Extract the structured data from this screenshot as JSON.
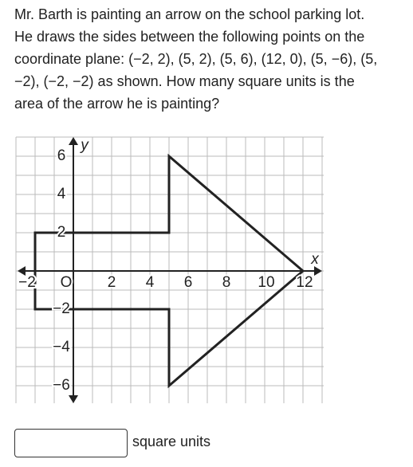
{
  "question_lines": [
    "Mr. Barth is painting an arrow on the school parking lot.",
    "He draws the sides between the following points on the",
    "coordinate plane: (−2, 2), (5, 2), (5, 6), (12, 0), (5, −6), (5,",
    "−2), (−2, −2) as shown. How many square units is the",
    "area of the arrow he is painting?"
  ],
  "graph": {
    "x_axis_label": "x",
    "y_axis_label": "y",
    "x_tick_labels": [
      "−2",
      "O",
      "2",
      "4",
      "6",
      "8",
      "10",
      "12"
    ],
    "y_tick_labels": [
      "6",
      "4",
      "2",
      "−2",
      "−4",
      "−6"
    ]
  },
  "answer_unit": "square units"
}
